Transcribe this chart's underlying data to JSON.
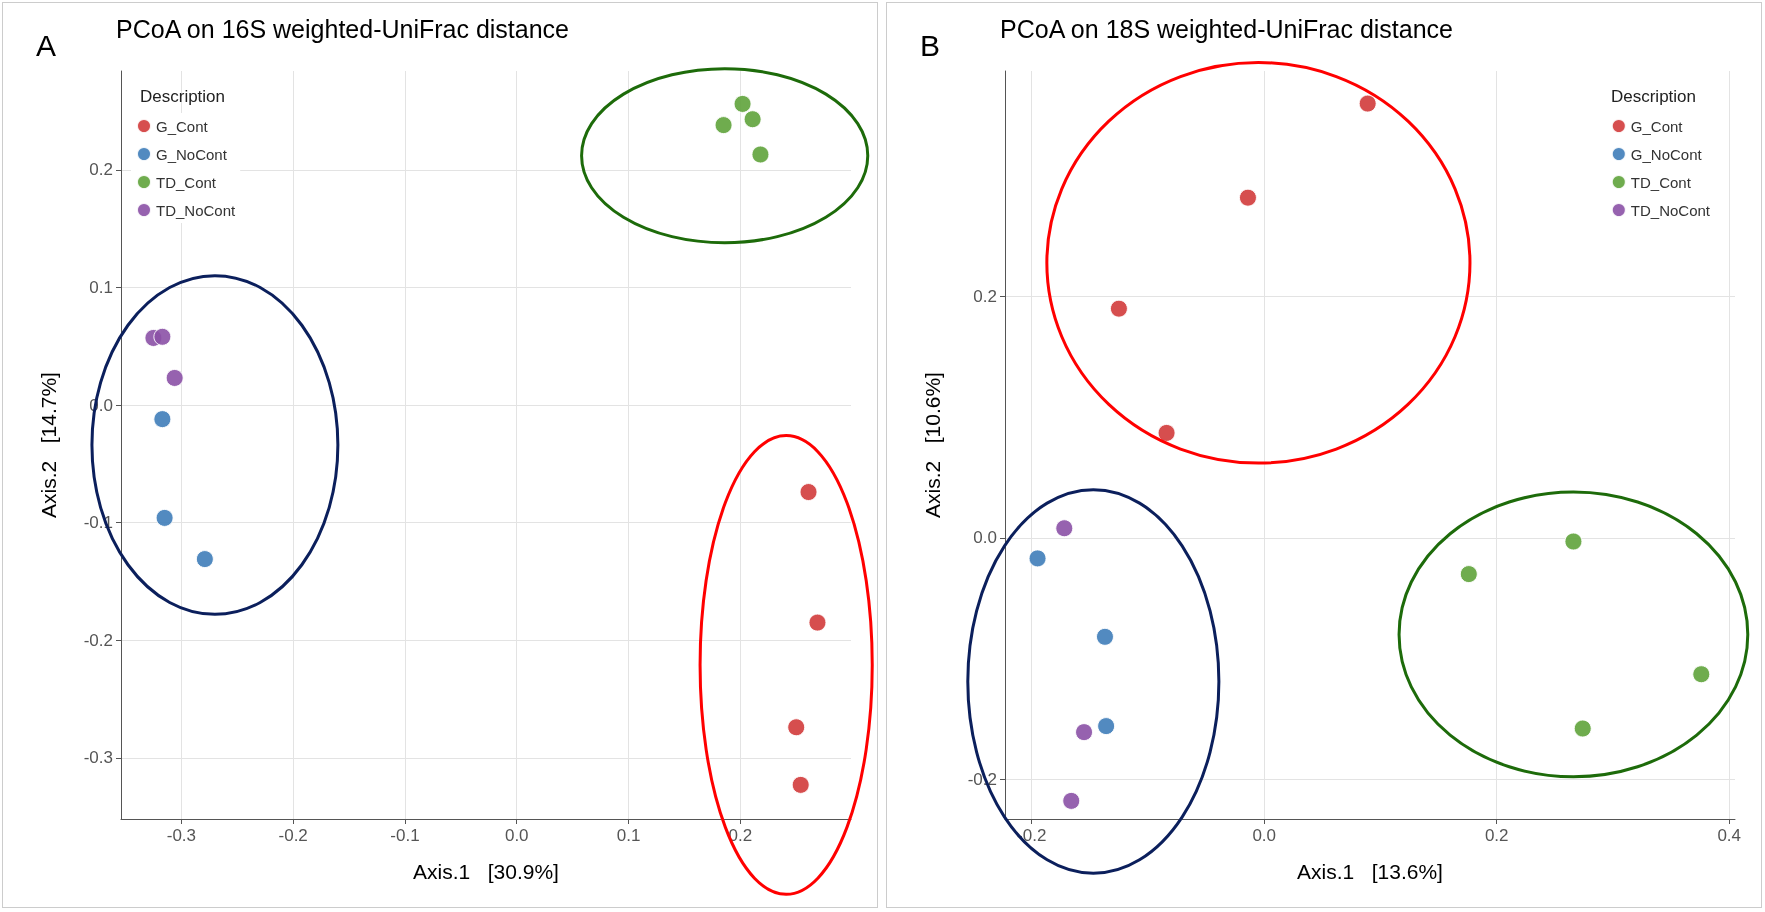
{
  "chart_data": [
    {
      "type": "scatter",
      "title": "PCoA on 16S weighted-UniFrac distance",
      "xlabel": "Axis.1   [30.9%]",
      "ylabel": "Axis.2   [14.7%]",
      "legend_title": "Description",
      "annotations": [
        "A"
      ],
      "series": [
        {
          "name": "G_Cont",
          "color": "#d13b3b",
          "x": [
            0.261,
            0.269,
            0.25,
            0.254
          ],
          "values": [
            -0.074,
            -0.185,
            -0.274,
            -0.323
          ]
        },
        {
          "name": "G_NoCont",
          "color": "#3f7db9",
          "x": [
            -0.317,
            -0.315,
            -0.279
          ],
          "values": [
            -0.012,
            -0.096,
            -0.131
          ]
        },
        {
          "name": "TD_Cont",
          "color": "#5fa33b",
          "x": [
            0.185,
            0.202,
            0.211,
            0.218
          ],
          "values": [
            0.238,
            0.256,
            0.243,
            0.213
          ]
        },
        {
          "name": "TD_NoCont",
          "color": "#8b51a6",
          "x": [
            -0.325,
            -0.317,
            -0.306
          ],
          "values": [
            0.057,
            0.058,
            0.023
          ]
        }
      ],
      "xlim": [
        -0.354,
        0.299
      ],
      "xticks": [
        -0.3,
        -0.2,
        -0.1,
        {
          "value": 0,
          "label": "0.0"
        },
        0.1,
        0.2
      ],
      "ylim": [
        -0.352,
        0.284
      ],
      "yticks": [
        -0.3,
        -0.2,
        -0.1,
        {
          "value": 0,
          "label": "0.0"
        },
        0.1,
        0.2
      ],
      "grid": true,
      "legend": "top left",
      "marker": "circle"
    },
    {
      "type": "scatter",
      "title": "PCoA on 18S weighted-UniFrac distance",
      "xlabel": "Axis.1   [13.6%]",
      "ylabel": "Axis.2   [10.6%]",
      "legend_title": "Description",
      "annotations": [
        "B"
      ],
      "series": [
        {
          "name": "G_Cont",
          "color": "#d13b3b",
          "x": [
            0.089,
            -0.014,
            -0.125,
            -0.084
          ],
          "values": [
            0.36,
            0.282,
            0.19,
            0.087
          ]
        },
        {
          "name": "G_NoCont",
          "color": "#3f7db9",
          "x": [
            -0.195,
            -0.137,
            -0.136
          ],
          "values": [
            -0.017,
            -0.082,
            -0.156
          ]
        },
        {
          "name": "TD_Cont",
          "color": "#5fa33b",
          "x": [
            0.176,
            0.266,
            0.376,
            0.274
          ],
          "values": [
            -0.03,
            -0.003,
            -0.113,
            -0.158
          ]
        },
        {
          "name": "TD_NoCont",
          "color": "#8b51a6",
          "x": [
            -0.172,
            -0.155,
            -0.166
          ],
          "values": [
            0.008,
            -0.161,
            -0.218
          ]
        }
      ],
      "xlim": [
        -0.223,
        0.405
      ],
      "xticks": [
        -0.2,
        {
          "value": 0,
          "label": "0.0"
        },
        0.2,
        0.4
      ],
      "ylim": [
        -0.233,
        0.387
      ],
      "yticks": [
        -0.2,
        {
          "value": 0,
          "label": "0.0"
        },
        0.2
      ],
      "grid": true,
      "legend": "top right",
      "marker": "circle"
    }
  ]
}
